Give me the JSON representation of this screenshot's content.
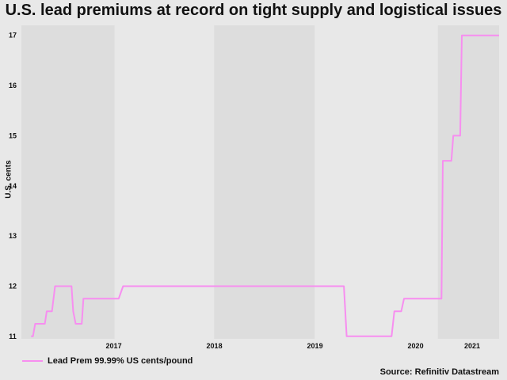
{
  "chart_data": {
    "type": "line",
    "title": "U.S. lead premiums at record on tight supply and logistical issues",
    "ylabel": "U.S. cents",
    "xlabel": "",
    "ylim": [
      10.95,
      17.2
    ],
    "xlim": [
      "2016-08-01",
      "2021-04-30"
    ],
    "yticks": [
      11,
      12,
      13,
      14,
      15,
      16,
      17
    ],
    "xticks": [
      {
        "label": "2017",
        "date": "2017-01-01"
      },
      {
        "label": "2018",
        "date": "2018-01-01"
      },
      {
        "label": "2019",
        "date": "2019-01-01"
      },
      {
        "label": "2020",
        "date": "2020-01-01"
      },
      {
        "label": "2021",
        "date": "2021-01-01"
      }
    ],
    "shaded_bands": [
      [
        "2016-08-01",
        "2017-07-05"
      ],
      [
        "2018-07-01",
        "2019-07-01"
      ],
      [
        "2020-09-20",
        "2021-04-30"
      ]
    ],
    "grid": false,
    "legend_position": "bottom-left",
    "series": [
      {
        "name": "Lead Prem 99.99% US cents/pound",
        "color": "#f78ef0",
        "points": [
          [
            "2016-09-05",
            11.0
          ],
          [
            "2016-09-12",
            11.0
          ],
          [
            "2016-09-20",
            11.25
          ],
          [
            "2016-10-25",
            11.25
          ],
          [
            "2016-11-01",
            11.5
          ],
          [
            "2016-11-20",
            11.5
          ],
          [
            "2016-12-01",
            12.0
          ],
          [
            "2017-01-30",
            12.0
          ],
          [
            "2017-02-05",
            11.5
          ],
          [
            "2017-02-14",
            11.25
          ],
          [
            "2017-03-08",
            11.25
          ],
          [
            "2017-03-14",
            11.75
          ],
          [
            "2017-07-20",
            11.75
          ],
          [
            "2017-08-05",
            12.0
          ],
          [
            "2019-10-15",
            12.0
          ],
          [
            "2019-10-25",
            11.0
          ],
          [
            "2020-04-05",
            11.0
          ],
          [
            "2020-04-15",
            11.5
          ],
          [
            "2020-05-10",
            11.5
          ],
          [
            "2020-05-20",
            11.75
          ],
          [
            "2020-10-03",
            11.75
          ],
          [
            "2020-10-08",
            14.5
          ],
          [
            "2020-11-08",
            14.5
          ],
          [
            "2020-11-15",
            15.0
          ],
          [
            "2020-12-10",
            15.0
          ],
          [
            "2020-12-16",
            17.0
          ],
          [
            "2021-04-30",
            17.0
          ]
        ]
      }
    ],
    "source": "Source: Refinitiv Datastream"
  }
}
